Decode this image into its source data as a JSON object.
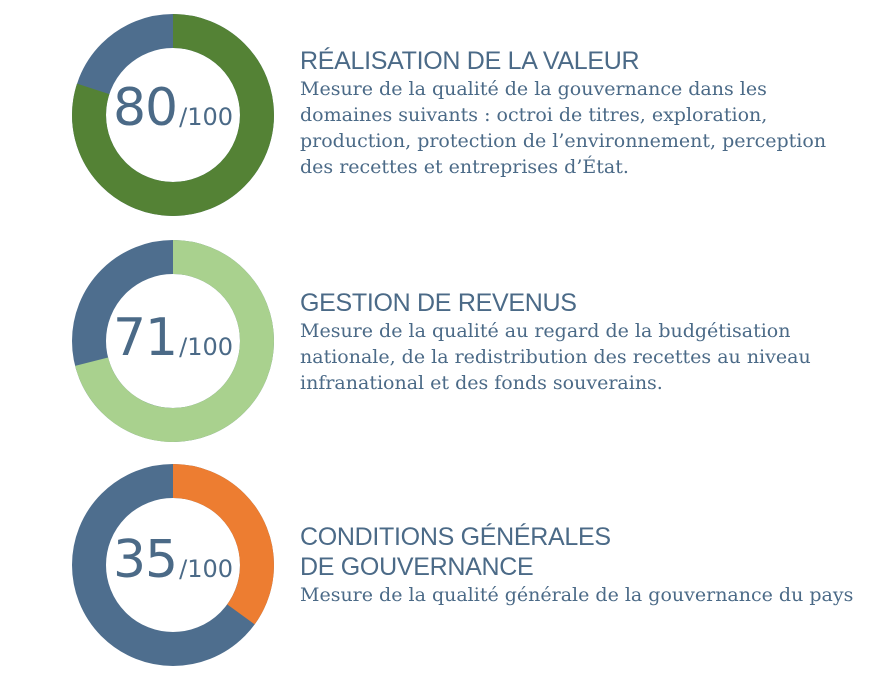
{
  "chart_data": [
    {
      "type": "pie",
      "donut": true,
      "value": 80,
      "max": 100,
      "score_text": "80",
      "max_text": "/100",
      "title": "RÉALISATION DE LA VALEUR",
      "description": "Mesure de la qualité de la gouvernance dans les domaines suivants : octroi de titres, exploration, production, protection de l’environnement, perception des recettes et entreprises d’État.",
      "colors": {
        "value": "#548235",
        "remainder": "#4e6e8e"
      }
    },
    {
      "type": "pie",
      "donut": true,
      "value": 71,
      "max": 100,
      "score_text": "71",
      "max_text": "/100",
      "title": "GESTION DE REVENUS",
      "description": "Mesure de la qualité au regard de la budgétisation nationale, de la redistribution des recettes au niveau infranational et des fonds souverains.",
      "colors": {
        "value": "#a9d18e",
        "remainder": "#4e6e8e"
      }
    },
    {
      "type": "pie",
      "donut": true,
      "value": 35,
      "max": 100,
      "score_text": "35",
      "max_text": "/100",
      "title": "CONDITIONS GÉNÉRALES DE GOUVERNANCE",
      "description": "Mesure de la qualité générale de la gouvernance du pays",
      "colors": {
        "value": "#ed7d31",
        "remainder": "#4e6e8e"
      }
    }
  ]
}
